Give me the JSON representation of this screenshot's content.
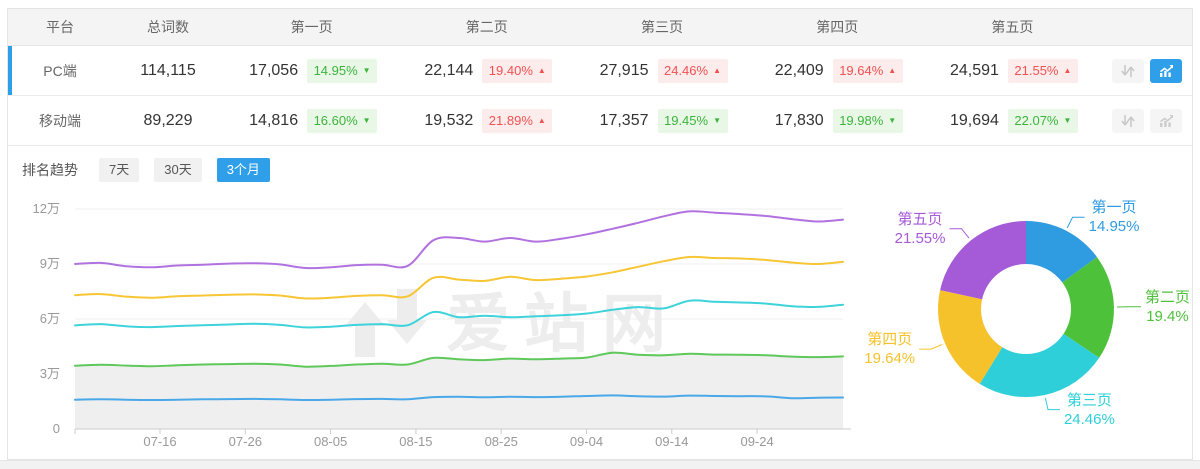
{
  "colors": {
    "accent_blue": "#2e9fe8",
    "badge_up_bg": "#fdecec",
    "badge_up_text": "#f05151",
    "badge_down_bg": "#e9f7e7",
    "badge_down_text": "#3cb43c",
    "header_bg": "#f4f4f4",
    "grid_line": "#efefef",
    "axis_line": "#cccccc",
    "page_colors": [
      "#2f9be0",
      "#4ec13a",
      "#2ecfd8",
      "#f5c22b",
      "#a55ad8"
    ]
  },
  "table": {
    "headers": {
      "platform": "平台",
      "total": "总词数",
      "pages": [
        "第一页",
        "第二页",
        "第三页",
        "第四页",
        "第五页"
      ]
    },
    "rows": [
      {
        "platform": "PC端",
        "total": "114,115",
        "selected": true,
        "chart_active": true,
        "pages": [
          {
            "value": "17,056",
            "pct": "14.95%",
            "dir": "down"
          },
          {
            "value": "22,144",
            "pct": "19.40%",
            "dir": "up"
          },
          {
            "value": "27,915",
            "pct": "24.46%",
            "dir": "up"
          },
          {
            "value": "22,409",
            "pct": "19.64%",
            "dir": "up"
          },
          {
            "value": "24,591",
            "pct": "21.55%",
            "dir": "up"
          }
        ]
      },
      {
        "platform": "移动端",
        "total": "89,229",
        "selected": false,
        "chart_active": false,
        "pages": [
          {
            "value": "14,816",
            "pct": "16.60%",
            "dir": "down"
          },
          {
            "value": "19,532",
            "pct": "21.89%",
            "dir": "up"
          },
          {
            "value": "17,357",
            "pct": "19.45%",
            "dir": "down"
          },
          {
            "value": "17,830",
            "pct": "19.98%",
            "dir": "down"
          },
          {
            "value": "19,694",
            "pct": "22.07%",
            "dir": "down"
          }
        ]
      }
    ]
  },
  "trend": {
    "label": "排名趋势",
    "tabs": [
      {
        "label": "7天",
        "active": false
      },
      {
        "label": "30天",
        "active": false
      },
      {
        "label": "3个月",
        "active": true
      }
    ]
  },
  "watermark": {
    "text": "爱站网"
  },
  "chart_data": [
    {
      "type": "line",
      "title": "排名趋势 3个月 (stacked cumulative keyword counts, PC端)",
      "x_ticks": [
        "07-16",
        "07-26",
        "08-05",
        "08-15",
        "08-25",
        "09-04",
        "09-14",
        "09-24"
      ],
      "x_range": [
        "07-06",
        "10-04"
      ],
      "sample_interval_days": 3,
      "y_ticks": [
        "0",
        "3万",
        "6万",
        "9万",
        "12万"
      ],
      "ylim": [
        0,
        120000
      ],
      "values_unit": "万 (10000)",
      "grid": true,
      "series": [
        {
          "name": "第一页",
          "color": "#4aa8e8",
          "values": [
            1.6,
            1.62,
            1.6,
            1.58,
            1.6,
            1.62,
            1.63,
            1.64,
            1.62,
            1.58,
            1.6,
            1.63,
            1.64,
            1.62,
            1.74,
            1.76,
            1.73,
            1.76,
            1.74,
            1.76,
            1.8,
            1.83,
            1.79,
            1.77,
            1.82,
            1.8,
            1.79,
            1.78,
            1.68,
            1.71,
            1.72
          ]
        },
        {
          "name": "第二页",
          "color": "#5fc85a",
          "area": true,
          "area_color": "#efefef",
          "values": [
            3.45,
            3.5,
            3.46,
            3.42,
            3.48,
            3.52,
            3.54,
            3.56,
            3.52,
            3.4,
            3.44,
            3.52,
            3.56,
            3.52,
            3.88,
            3.8,
            3.76,
            3.84,
            3.8,
            3.84,
            3.9,
            4.16,
            4.05,
            4.02,
            4.1,
            4.06,
            4.05,
            4.02,
            3.95,
            3.92,
            3.96
          ]
        },
        {
          "name": "第三页",
          "color": "#3ed3da",
          "values": [
            5.65,
            5.72,
            5.6,
            5.56,
            5.62,
            5.66,
            5.7,
            5.74,
            5.68,
            5.54,
            5.58,
            5.68,
            5.72,
            5.66,
            6.38,
            6.1,
            6.18,
            6.1,
            6.15,
            6.2,
            6.3,
            6.5,
            6.65,
            6.58,
            7.0,
            6.94,
            6.9,
            6.84,
            6.7,
            6.66,
            6.78
          ]
        },
        {
          "name": "第四页",
          "color": "#f7c634",
          "values": [
            7.3,
            7.36,
            7.22,
            7.16,
            7.24,
            7.28,
            7.32,
            7.34,
            7.28,
            7.12,
            7.16,
            7.26,
            7.3,
            7.24,
            8.25,
            8.15,
            8.08,
            8.3,
            8.12,
            8.2,
            8.32,
            8.55,
            8.85,
            9.15,
            9.38,
            9.33,
            9.3,
            9.22,
            9.08,
            9.0,
            9.12
          ]
        },
        {
          "name": "第五页",
          "color": "#b172e0",
          "values": [
            9.0,
            9.06,
            8.88,
            8.82,
            8.92,
            8.96,
            9.02,
            9.04,
            8.98,
            8.78,
            8.82,
            8.94,
            8.96,
            8.9,
            10.3,
            10.42,
            10.22,
            10.42,
            10.22,
            10.38,
            10.62,
            10.92,
            11.25,
            11.6,
            11.87,
            11.8,
            11.72,
            11.62,
            11.45,
            11.32,
            11.42
          ]
        }
      ]
    },
    {
      "type": "pie",
      "donut": true,
      "slices": [
        {
          "label": "第一页",
          "pct": 14.95,
          "display_pct": "14.95%",
          "color": "#2f9be0"
        },
        {
          "label": "第二页",
          "pct": 19.4,
          "display_pct": "19.4%",
          "color": "#4ec13a"
        },
        {
          "label": "第三页",
          "pct": 24.46,
          "display_pct": "24.46%",
          "color": "#2ecfd8"
        },
        {
          "label": "第四页",
          "pct": 19.64,
          "display_pct": "19.64%",
          "color": "#f5c22b"
        },
        {
          "label": "第五页",
          "pct": 21.55,
          "display_pct": "21.55%",
          "color": "#a55ad8"
        }
      ]
    }
  ]
}
